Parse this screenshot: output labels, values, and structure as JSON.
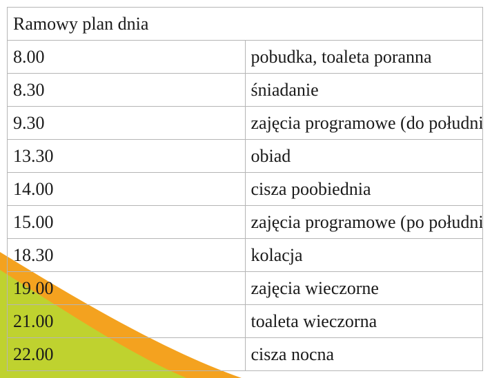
{
  "title": "Ramowy plan dnia",
  "rows": [
    {
      "time": "8.00",
      "activity": "pobudka, toaleta poranna"
    },
    {
      "time": "8.30",
      "activity": "śniadanie"
    },
    {
      "time": "9.30",
      "activity": "zajęcia programowe (do południowe)"
    },
    {
      "time": "13.30",
      "activity": "obiad"
    },
    {
      "time": "14.00",
      "activity": "cisza poobiednia"
    },
    {
      "time": "15.00",
      "activity": "zajęcia programowe (po południowe)"
    },
    {
      "time": "18.30",
      "activity": "kolacja"
    },
    {
      "time": "19.00",
      "activity": "zajęcia wieczorne"
    },
    {
      "time": "21.00",
      "activity": "toaleta wieczorna"
    },
    {
      "time": "22.00",
      "activity": "cisza nocna"
    }
  ],
  "colors": {
    "orange_band": "#f4a21f",
    "green_band": "#bfd22f"
  }
}
